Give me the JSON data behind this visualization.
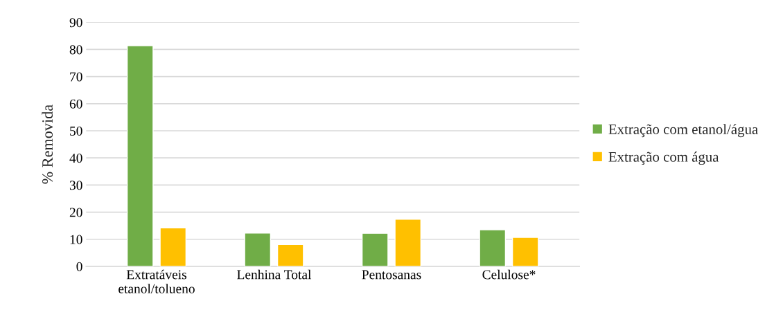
{
  "chart_data": {
    "type": "bar",
    "ylabel": "% Removida",
    "categories": [
      "Extratáveis\netanol/tolueno",
      "Lenhina Total",
      "Pentosanas",
      "Celulose*"
    ],
    "series": [
      {
        "name": "Extração com etanol/água",
        "color": "#70ad47",
        "values": [
          81.4,
          12.3,
          12.2,
          13.5
        ]
      },
      {
        "name": "Extração com água",
        "color": "#ffc000",
        "values": [
          14.2,
          8.1,
          17.4,
          10.7
        ]
      }
    ],
    "ylim": [
      0,
      90
    ],
    "yticks": [
      0,
      10,
      20,
      30,
      40,
      50,
      60,
      70,
      80,
      90
    ],
    "grid": "y",
    "legend": "right"
  }
}
